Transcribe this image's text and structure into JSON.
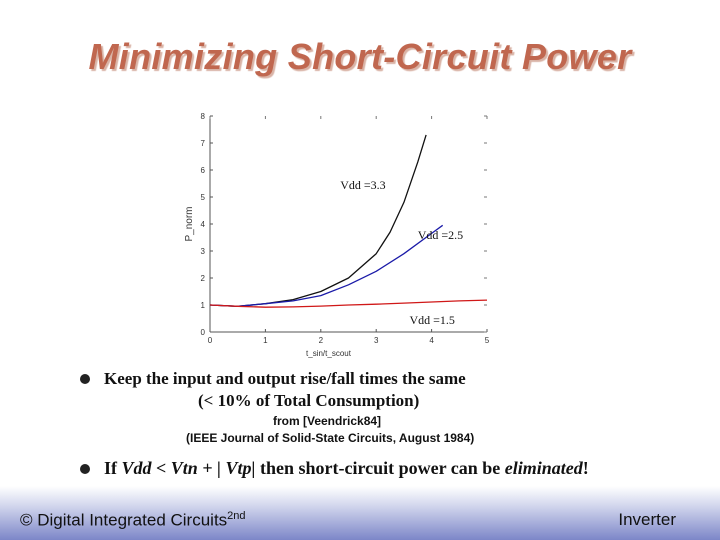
{
  "slide": {
    "title": "Minimizing Short-Circuit Power",
    "bullet1_line1": "Keep the input and output rise/fall times the same",
    "bullet1_line2": "(< 10% of Total Consumption)",
    "source_line1": "from [Veendrick84]",
    "source_line2": "(IEEE Journal of Solid-State Circuits, August 1984)",
    "bullet2_prefix": "If",
    "bullet2_vdd": "Vdd < Vtn + | Vtp|",
    "bullet2_middle": "then short-circuit power can be",
    "bullet2_emph": "eliminated",
    "bullet2_end": "!"
  },
  "footer": {
    "left": "© Digital Integrated Circuits",
    "left_sup": "2nd",
    "right": "Inverter"
  },
  "chart_data": {
    "type": "line",
    "ylabel": "P_norm",
    "xlabel": "t_sin/t_scout",
    "xlim": [
      0,
      5
    ],
    "ylim": [
      0,
      8
    ],
    "xticks": [
      "0",
      "1",
      "2",
      "3",
      "4",
      "5"
    ],
    "yticks": [
      "0",
      "1",
      "2",
      "3",
      "4",
      "5",
      "6",
      "7",
      "8"
    ],
    "series": [
      {
        "name": "Vdd =3.3",
        "color": "#111111",
        "x": [
          0,
          0.5,
          1,
          1.5,
          2,
          2.5,
          3,
          3.25,
          3.5,
          3.75,
          3.9
        ],
        "y": [
          1.0,
          0.95,
          1.05,
          1.2,
          1.5,
          2.0,
          2.9,
          3.7,
          4.8,
          6.3,
          7.3
        ]
      },
      {
        "name": "Vdd =2.5",
        "color": "#1a1aa8",
        "x": [
          0,
          0.5,
          1,
          1.5,
          2,
          2.5,
          3,
          3.5,
          4,
          4.2
        ],
        "y": [
          1.0,
          0.95,
          1.05,
          1.15,
          1.35,
          1.75,
          2.25,
          2.9,
          3.65,
          3.95
        ]
      },
      {
        "name": "Vdd =1.5",
        "color": "#d01818",
        "x": [
          0,
          0.5,
          1,
          1.5,
          2,
          2.5,
          3,
          3.5,
          4,
          4.5,
          5
        ],
        "y": [
          1.0,
          0.95,
          0.92,
          0.93,
          0.96,
          1.0,
          1.03,
          1.07,
          1.11,
          1.15,
          1.18
        ]
      }
    ]
  }
}
